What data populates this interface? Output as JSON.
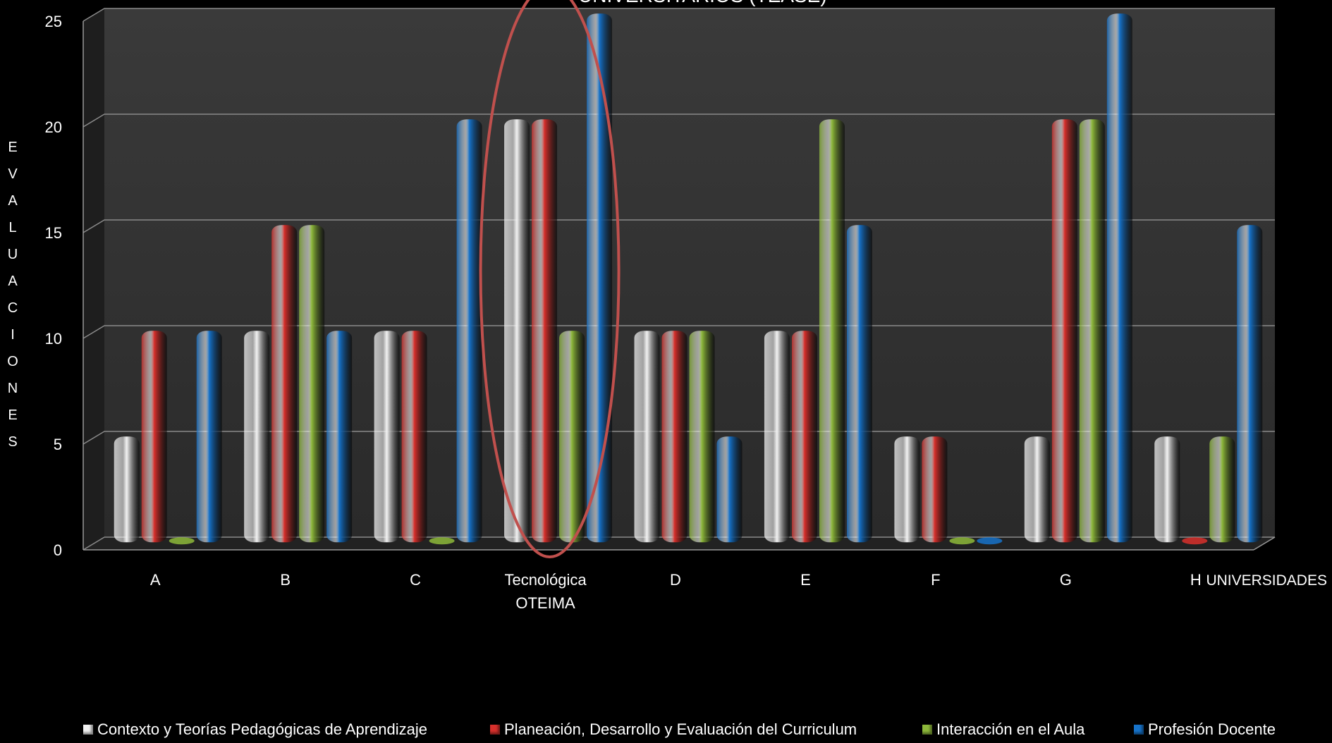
{
  "chart_data": {
    "type": "bar",
    "title": "UNIVERSITARIOS  (TEASE)",
    "ylabel": "EVALUACIONES",
    "xlabel": "UNIVERSIDADES",
    "ylim": [
      0,
      25
    ],
    "yticks": [
      "0",
      "5",
      "10",
      "15",
      "20",
      "25"
    ],
    "grid": true,
    "legend_position": "bottom",
    "categories": [
      "A",
      "B",
      "C",
      "Tecnológica OTEIMA",
      "D",
      "E",
      "F",
      "G",
      "H"
    ],
    "series": [
      {
        "name": "Contexto y Teorías Pedagógicas de Aprendizaje",
        "color": "#f2f2f2",
        "values": [
          5,
          10,
          10,
          20,
          10,
          10,
          5,
          5,
          5
        ]
      },
      {
        "name": "Planeación, Desarrollo y Evaluación  del Curriculum",
        "color": "#d8302c",
        "values": [
          10,
          15,
          10,
          20,
          10,
          10,
          5,
          20,
          0
        ]
      },
      {
        "name": "Interacción en el Aula",
        "color": "#8db83a",
        "values": [
          0,
          15,
          0,
          10,
          10,
          20,
          0,
          20,
          5
        ]
      },
      {
        "name": "Profesión Docente",
        "color": "#1672c9",
        "values": [
          10,
          10,
          20,
          25,
          5,
          15,
          0,
          25,
          15
        ]
      }
    ],
    "highlight_category": "Tecnológica OTEIMA",
    "highlight_color": "#c0504d"
  }
}
